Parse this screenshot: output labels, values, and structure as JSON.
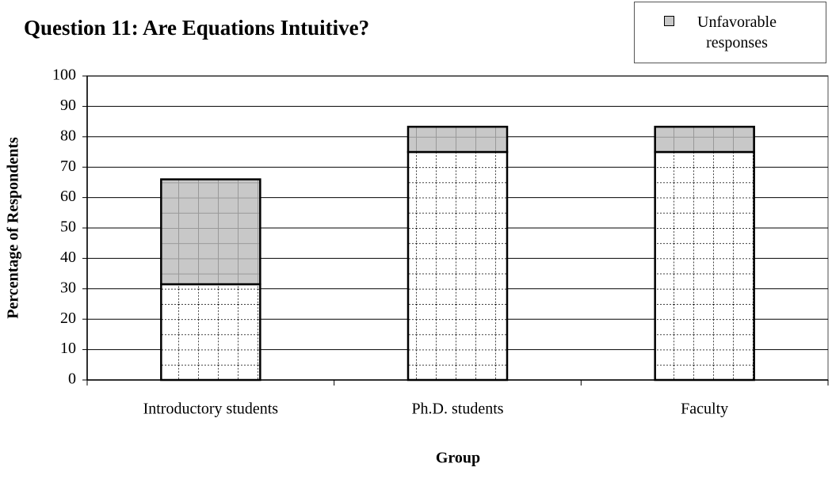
{
  "chart_data": {
    "type": "stacked_bar",
    "title": "Question 11: Are Equations Intuitive?",
    "x_label": "Group",
    "y_label": "Percentage of Respondents",
    "categories": [
      "Introductory students",
      "Ph.D. students",
      "Faculty"
    ],
    "series": [
      {
        "color": "#ffffff",
        "values": [
          31.5,
          75,
          75
        ]
      },
      {
        "name": "Unfavorable responses",
        "color": "#c8c8c8",
        "values": [
          34.5,
          8.3,
          8.3
        ]
      }
    ],
    "ylim": [
      0,
      100
    ],
    "yticks": [
      0,
      10,
      20,
      30,
      40,
      50,
      60,
      70,
      80,
      90,
      100
    ],
    "grid": true,
    "legend": "top-right"
  }
}
